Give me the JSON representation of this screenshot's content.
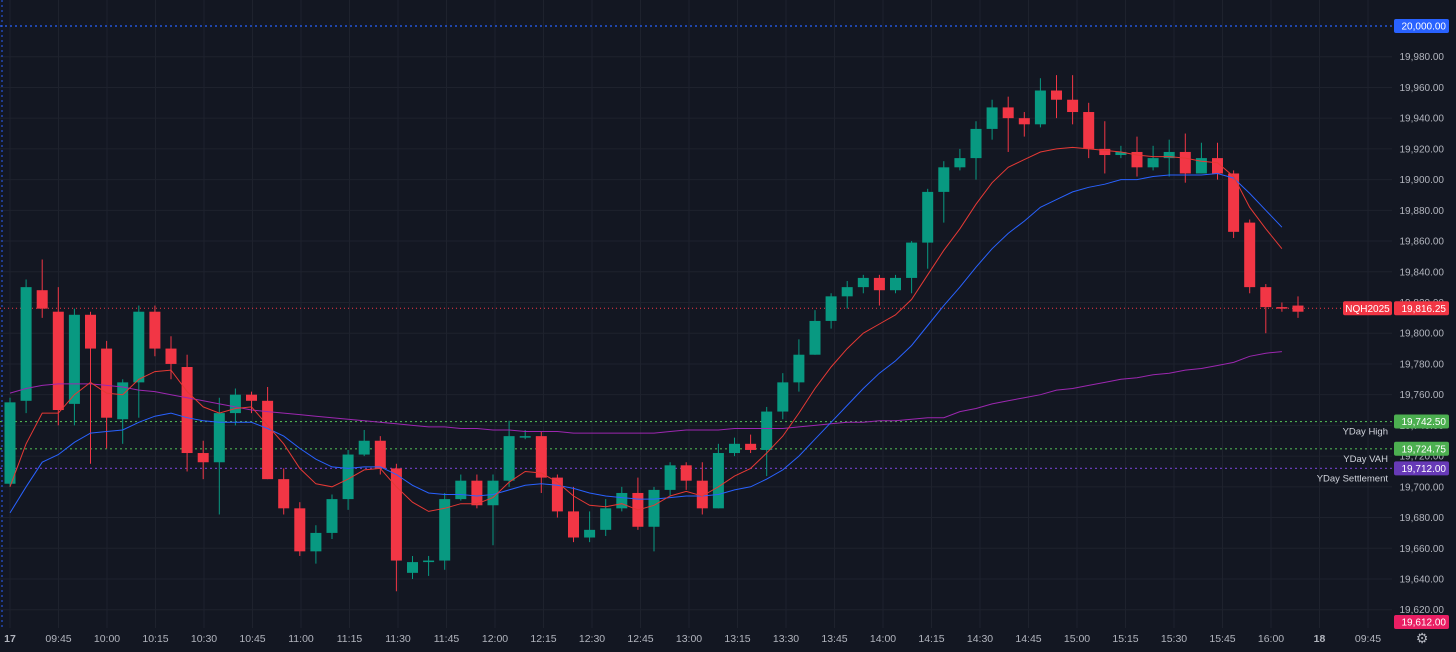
{
  "chart_data": {
    "type": "candlestick",
    "symbol": "NQH2025",
    "ylim": [
      19612,
      20008
    ],
    "y_ticks": [
      "19,620.00",
      "19,640.00",
      "19,660.00",
      "19,680.00",
      "19,700.00",
      "19,720.00",
      "19,740.00",
      "19,760.00",
      "19,780.00",
      "19,800.00",
      "19,820.00",
      "19,840.00",
      "19,860.00",
      "19,880.00",
      "19,900.00",
      "19,920.00",
      "19,940.00",
      "19,960.00",
      "19,980.00"
    ],
    "x_labels": [
      "17",
      "09:45",
      "10:00",
      "10:15",
      "10:30",
      "10:45",
      "11:00",
      "11:15",
      "11:30",
      "11:45",
      "12:00",
      "12:15",
      "12:30",
      "12:45",
      "13:00",
      "13:15",
      "13:30",
      "13:45",
      "14:00",
      "14:15",
      "14:30",
      "14:45",
      "15:00",
      "15:15",
      "15:30",
      "15:45",
      "16:00",
      "18",
      "09:45"
    ],
    "candles": [
      [
        19702,
        19755,
        19700,
        19758
      ],
      [
        19756,
        19830,
        19748,
        19835
      ],
      [
        19828,
        19816,
        19810,
        19848
      ],
      [
        19814,
        19750,
        19740,
        19830
      ],
      [
        19754,
        19812,
        19740,
        19816
      ],
      [
        19812,
        19790,
        19715,
        19814
      ],
      [
        19790,
        19745,
        19725,
        19795
      ],
      [
        19744,
        19768,
        19728,
        19770
      ],
      [
        19768,
        19814,
        19745,
        19818
      ],
      [
        19814,
        19790,
        19785,
        19818
      ],
      [
        19790,
        19780,
        19770,
        19798
      ],
      [
        19778,
        19722,
        19710,
        19786
      ],
      [
        19722,
        19716,
        19705,
        19730
      ],
      [
        19716,
        19748,
        19682,
        19758
      ],
      [
        19748,
        19760,
        19740,
        19764
      ],
      [
        19760,
        19756,
        19748,
        19762
      ],
      [
        19756,
        19705,
        19705,
        19765
      ],
      [
        19705,
        19686,
        19682,
        19712
      ],
      [
        19686,
        19658,
        19655,
        19690
      ],
      [
        19658,
        19670,
        19650,
        19675
      ],
      [
        19670,
        19692,
        19666,
        19695
      ],
      [
        19692,
        19721,
        19685,
        19724
      ],
      [
        19721,
        19730,
        19720,
        19737
      ],
      [
        19730,
        19712,
        19708,
        19733
      ],
      [
        19712,
        19652,
        19632,
        19715
      ],
      [
        19644,
        19651,
        19640,
        19655
      ],
      [
        19651,
        19652,
        19642,
        19655
      ],
      [
        19652,
        19692,
        19646,
        19696
      ],
      [
        19692,
        19704,
        19691,
        19708
      ],
      [
        19704,
        19688,
        19686,
        19708
      ],
      [
        19688,
        19704,
        19662,
        19708
      ],
      [
        19704,
        19733,
        19700,
        19743
      ],
      [
        19733,
        19733,
        19731,
        19737
      ],
      [
        19733,
        19706,
        19696,
        19736
      ],
      [
        19706,
        19684,
        19680,
        19708
      ],
      [
        19684,
        19667,
        19664,
        19700
      ],
      [
        19667,
        19672,
        19664,
        19684
      ],
      [
        19672,
        19686,
        19668,
        19692
      ],
      [
        19686,
        19696,
        19684,
        19700
      ],
      [
        19696,
        19674,
        19672,
        19706
      ],
      [
        19674,
        19698,
        19658,
        19700
      ],
      [
        19698,
        19714,
        19694,
        19716
      ],
      [
        19714,
        19704,
        19698,
        19716
      ],
      [
        19704,
        19686,
        19682,
        19716
      ],
      [
        19686,
        19722,
        19686,
        19728
      ],
      [
        19722,
        19728,
        19720,
        19732
      ],
      [
        19728,
        19724,
        19722,
        19734
      ],
      [
        19724,
        19749,
        19707,
        19752
      ],
      [
        19749,
        19768,
        19744,
        19774
      ],
      [
        19768,
        19786,
        19762,
        19796
      ],
      [
        19786,
        19808,
        19786,
        19815
      ],
      [
        19808,
        19824,
        19803,
        19826
      ],
      [
        19824,
        19830,
        19816,
        19834
      ],
      [
        19830,
        19836,
        19826,
        19838
      ],
      [
        19836,
        19828,
        19818,
        19838
      ],
      [
        19828,
        19836,
        19826,
        19838
      ],
      [
        19836,
        19859,
        19826,
        19860
      ],
      [
        19859,
        19892,
        19842,
        19894
      ],
      [
        19892,
        19908,
        19872,
        19912
      ],
      [
        19908,
        19914,
        19906,
        19920
      ],
      [
        19914,
        19933,
        19900,
        19938
      ],
      [
        19933,
        19947,
        19926,
        19952
      ],
      [
        19947,
        19940,
        19918,
        19954
      ],
      [
        19940,
        19936,
        19928,
        19944
      ],
      [
        19936,
        19958,
        19934,
        19966
      ],
      [
        19958,
        19952,
        19940,
        19968
      ],
      [
        19952,
        19944,
        19936,
        19968
      ],
      [
        19944,
        19920,
        19914,
        19950
      ],
      [
        19920,
        19916,
        19904,
        19938
      ],
      [
        19916,
        19918,
        19914,
        19922
      ],
      [
        19918,
        19908,
        19902,
        19928
      ],
      [
        19908,
        19914,
        19906,
        19922
      ],
      [
        19914,
        19918,
        19902,
        19926
      ],
      [
        19918,
        19904,
        19898,
        19930
      ],
      [
        19904,
        19914,
        19904,
        19924
      ],
      [
        19914,
        19904,
        19900,
        19924
      ],
      [
        19904,
        19866,
        19862,
        19906
      ],
      [
        19872,
        19830,
        19826,
        19874
      ],
      [
        19830,
        19817,
        19800,
        19832
      ],
      [
        19817,
        19816,
        19814,
        19820
      ],
      [
        19818,
        19814,
        19810,
        19824
      ]
    ],
    "ema_fast": [
      19700,
      19728,
      19748,
      19748,
      19760,
      19768,
      19761,
      19760,
      19770,
      19775,
      19776,
      19762,
      19752,
      19748,
      19751,
      19752,
      19740,
      19728,
      19712,
      19702,
      19700,
      19705,
      19711,
      19712,
      19700,
      19690,
      19684,
      19686,
      19689,
      19689,
      19693,
      19703,
      19710,
      19709,
      19703,
      19694,
      19688,
      19687,
      19689,
      19685,
      19688,
      19694,
      19697,
      19694,
      19700,
      19707,
      19712,
      19722,
      19733,
      19748,
      19764,
      19778,
      19790,
      19800,
      19806,
      19812,
      19822,
      19838,
      19854,
      19868,
      19884,
      19898,
      19908,
      19913,
      19918,
      19920,
      19921,
      19920,
      19919,
      19918,
      19916,
      19915,
      19915,
      19914,
      19912,
      19911,
      19902,
      19882,
      19868,
      19855
    ],
    "ema_slow": [
      19683,
      19700,
      19716,
      19721,
      19729,
      19735,
      19736,
      19737,
      19742,
      19746,
      19748,
      19745,
      19743,
      19742,
      19742,
      19742,
      19738,
      19733,
      19725,
      19718,
      19713,
      19712,
      19713,
      19713,
      19708,
      19701,
      19696,
      19695,
      19695,
      19694,
      19695,
      19698,
      19701,
      19702,
      19701,
      19699,
      19696,
      19694,
      19693,
      19692,
      19692,
      19693,
      19694,
      19694,
      19695,
      19698,
      19700,
      19705,
      19711,
      19720,
      19731,
      19742,
      19753,
      19764,
      19774,
      19782,
      19792,
      19805,
      19818,
      19830,
      19843,
      19855,
      19865,
      19873,
      19882,
      19887,
      19892,
      19895,
      19897,
      19900,
      19900,
      19902,
      19903,
      19903,
      19903,
      19904,
      19901,
      19891,
      19880,
      19869
    ],
    "vwap": [
      19761,
      19764,
      19766,
      19767,
      19767,
      19767,
      19766,
      19765,
      19763,
      19762,
      19760,
      19758,
      19756,
      19754,
      19752,
      19750,
      19749,
      19748,
      19747,
      19746,
      19745,
      19744,
      19743,
      19742,
      19741,
      19740,
      19739,
      19739,
      19738,
      19738,
      19737,
      19737,
      19736,
      19736,
      19736,
      19735,
      19735,
      19735,
      19735,
      19735,
      19735,
      19736,
      19737,
      19737,
      19737,
      19738,
      19738,
      19738,
      19738,
      19739,
      19740,
      19741,
      19742,
      19742,
      19743,
      19743,
      19744,
      19745,
      19745,
      19749,
      19751,
      19754,
      19756,
      19758,
      19760,
      19763,
      19764,
      19766,
      19768,
      19770,
      19771,
      19773,
      19774,
      19776,
      19777,
      19779,
      19781,
      19785,
      19787,
      19788
    ],
    "levels": [
      {
        "value": 20000,
        "tag": "20,000.00",
        "caption": "",
        "color": "#2962ff",
        "style": "dotted"
      },
      {
        "value": 19742.5,
        "tag": "19,742.50",
        "caption": "YDay High",
        "color": "#4caf50",
        "style": "dotted"
      },
      {
        "value": 19724.75,
        "tag": "19,724.75",
        "caption": "YDay VAH",
        "color": "#4caf50",
        "style": "dotted"
      },
      {
        "value": 19712,
        "tag": "19,712.00",
        "caption": "YDay Settlement",
        "color": "#673ab7",
        "style": "dotted"
      }
    ],
    "last_price": {
      "value": 19816.25,
      "symbol": "NQH2025",
      "tag": "19,816.25",
      "color": "#f23645"
    },
    "bottom_price": {
      "tag": "19,612.00",
      "color": "#e91e63"
    },
    "colors": {
      "up": "#089981",
      "down": "#f23645",
      "ema_fast": "#e53935",
      "ema_slow": "#2962ff",
      "vwap": "#9c27b0",
      "background": "#131722",
      "grid": "#1e222d"
    }
  },
  "toolbar": {
    "settings_icon": "gear-icon"
  }
}
